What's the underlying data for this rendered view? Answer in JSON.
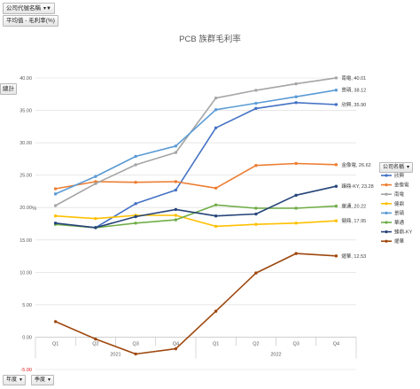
{
  "pivot": {
    "filter_field": "公司代號名稱",
    "value_field": "平均值 - 毛利率(%)",
    "legend_field": "公司名稱",
    "axis_field_year": "年度",
    "axis_field_quarter": "季度",
    "axis_value_label": "總計"
  },
  "chart_data": {
    "type": "line",
    "title": "PCB 族群毛利率",
    "ylabel": "%",
    "ylim": [
      -5,
      40
    ],
    "yticks": [
      -5,
      0,
      5,
      10,
      15,
      20,
      25,
      30,
      35,
      40
    ],
    "ytick_labels": [
      "-5.00",
      "0.00",
      "5.00",
      "10.00",
      "15.00",
      "20.00",
      "25.00",
      "30.00",
      "35.00",
      "40.00"
    ],
    "categories": [
      "Q1",
      "Q2",
      "Q3",
      "Q4",
      "Q1",
      "Q2",
      "Q3",
      "Q4"
    ],
    "groups": [
      {
        "label": "2021",
        "span": 4
      },
      {
        "label": "2022",
        "span": 4
      }
    ],
    "grid": true,
    "legend_position": "right",
    "series": [
      {
        "name": "欣興",
        "color": "#4472c4",
        "values": [
          17.5,
          16.9,
          20.6,
          22.7,
          32.3,
          35.3,
          36.2,
          35.9
        ],
        "end_label": "欣興, 35.90"
      },
      {
        "name": "金像電",
        "color": "#ed7d31",
        "values": [
          22.9,
          24.0,
          23.9,
          24.0,
          23.0,
          26.5,
          26.8,
          26.62
        ],
        "end_label": "金像電, 26.62"
      },
      {
        "name": "南電",
        "color": "#a5a5a5",
        "values": [
          20.3,
          23.7,
          26.6,
          28.5,
          36.9,
          38.1,
          39.1,
          40.01
        ],
        "end_label": "南電, 40.01"
      },
      {
        "name": "健鼎",
        "color": "#ffc000",
        "values": [
          18.7,
          18.3,
          18.8,
          18.8,
          17.1,
          17.4,
          17.6,
          17.95
        ],
        "end_label": "健鼎, 17.95"
      },
      {
        "name": "景碩",
        "color": "#5b9bd5",
        "values": [
          22.1,
          24.8,
          27.9,
          29.5,
          35.1,
          36.1,
          37.1,
          38.12
        ],
        "end_label": "景碩, 38.12"
      },
      {
        "name": "華通",
        "color": "#70ad47",
        "values": [
          17.4,
          16.9,
          17.6,
          18.1,
          20.4,
          19.9,
          19.9,
          20.22
        ],
        "end_label": "華通, 20.22"
      },
      {
        "name": "臻鼎-KY",
        "color": "#264478",
        "values": [
          17.6,
          16.9,
          18.6,
          19.7,
          18.7,
          19.0,
          21.9,
          23.28
        ],
        "end_label": "臻鼎-KY, 23.28"
      },
      {
        "name": "燿華",
        "color": "#9e480e",
        "values": [
          2.4,
          -0.3,
          -2.6,
          -1.8,
          4.0,
          9.9,
          12.9,
          12.53
        ],
        "end_label": "燿華, 12.53"
      }
    ]
  }
}
